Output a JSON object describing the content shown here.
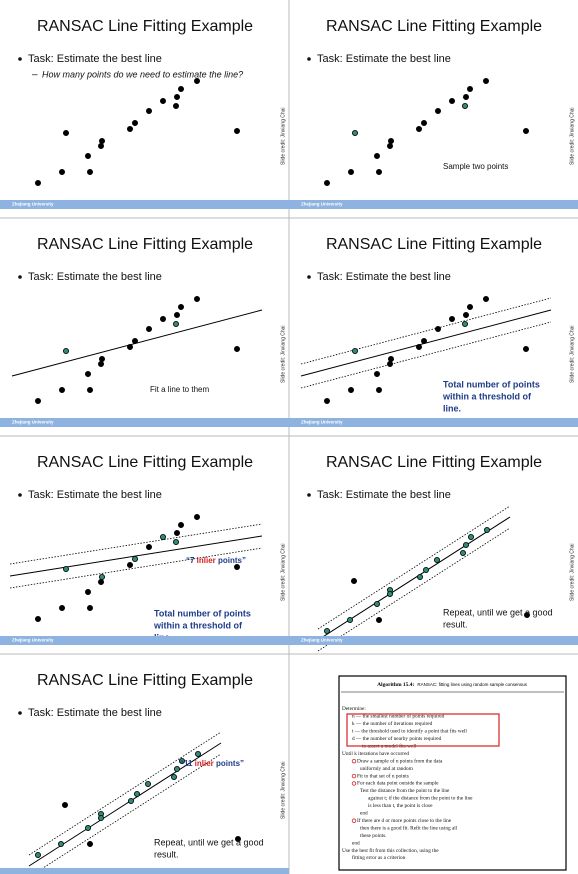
{
  "slides": [
    {
      "title": "RANSAC Line Fitting Example",
      "bullet": "Task: Estimate the best line",
      "sub_bullet": "How many points do we need to estimate the line?",
      "credit": "Slide credit: Jinxiang Chai",
      "footer": "Zhejiang University"
    },
    {
      "title": "RANSAC Line Fitting Example",
      "bullet": "Task: Estimate the best line",
      "caption": [
        "Sample two points"
      ],
      "credit": "Slide credit: Jinxiang Chai",
      "footer": "Zhejiang University"
    },
    {
      "title": "RANSAC Line Fitting Example",
      "bullet": "Task: Estimate the best line",
      "caption": [
        "Fit a line to them"
      ],
      "credit": "Slide credit: Jinxiang Chai",
      "footer": "Zhejiang University"
    },
    {
      "title": "RANSAC Line Fitting Example",
      "bullet": "Task: Estimate the best line",
      "caption": [
        "Total number of points",
        "within a threshold of",
        "line."
      ],
      "credit": "Slide credit: Jinxiang Chai",
      "footer": "Zhejiang University"
    },
    {
      "title": "RANSAC Line Fitting Example",
      "bullet": "Task: Estimate the best line",
      "caption": [
        "Total number of points",
        "within a threshold of",
        "line."
      ],
      "inlier": {
        "prefix": "“7 ",
        "word": "inlier",
        "suffix": " points”"
      },
      "credit": "Slide credit: Jinxiang Chai",
      "footer": "Zhejiang University"
    },
    {
      "title": "RANSAC Line Fitting Example",
      "bullet": "Task: Estimate the best line",
      "caption": [
        "Repeat, until we get a good",
        "result."
      ],
      "credit": "Slide credit: Jinxiang Chai",
      "footer": "Zhejiang University"
    },
    {
      "title": "RANSAC Line Fitting Example",
      "bullet": "Task: Estimate the best line",
      "caption": [
        "Repeat, until we get a good",
        "result."
      ],
      "inlier": {
        "prefix": "“11 ",
        "word": "inlier",
        "suffix": " points”"
      },
      "credit": "Slide credit: Jinxiang Chai"
    }
  ],
  "algorithm": {
    "number": "Algorithm 15.4:",
    "name": "RANSAC: fitting lines using random sample consensus",
    "lines": [
      "Determine:",
      "n — the smallest number of points required",
      "k — the number of iterations required",
      "t — the threshold used to identify a point that fits well",
      "d — the number of nearby points required",
      "to assert a model fits well",
      "Until k iterations have occurred",
      "Draw a sample of n points from the data",
      "uniformly and at random",
      "Fit to that set of n points",
      "For each data point outside the sample",
      "Test the distance from the point to the line",
      "against t; if the distance from the point to the line",
      "is less than t, the point is close",
      "end",
      "If there are d or more points close to the line",
      "then there is a good fit. Refit the line using all",
      "these points.",
      "end",
      "Use the best fit from this collection, using the",
      "fitting error as a criterion"
    ]
  }
}
